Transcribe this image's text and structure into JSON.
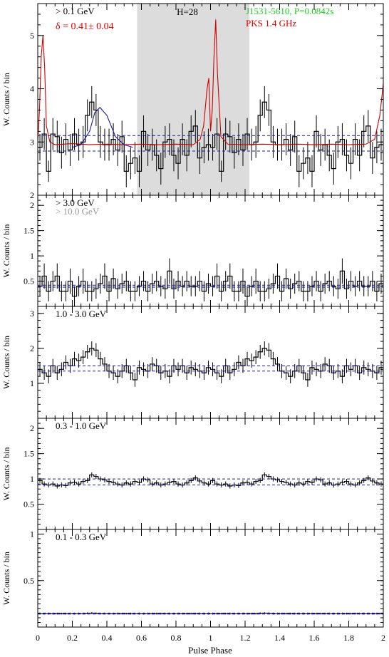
{
  "figure": {
    "xlabel": "Pulse Phase",
    "xticks": [
      "0",
      "0.2",
      "0.4",
      "0.6",
      "0.8",
      "1",
      "1.2",
      "1.4",
      "1.6",
      "1.8",
      "2"
    ]
  },
  "chart_data": [
    {
      "type": "line",
      "panel": "total",
      "ylabel": "W. Counts / bin",
      "ylim": [
        2,
        5.6
      ],
      "yticks": [
        "2",
        "3",
        "4",
        "5"
      ],
      "labels": {
        "energy": "> 0.1 GeV",
        "delta": "δ = 0.41± 0.04",
        "h_test": "H=28",
        "pulsar": "J1531-5610, P=0.0842s",
        "radio": "PKS 1.4 GHz"
      },
      "colors": {
        "energy": "#000000",
        "delta": "#e00000",
        "pulsar": "#22cc22",
        "radio": "#e00000",
        "radio_profile": "#cc0000",
        "background": "#1a1aa0",
        "fit": "#1a1aa0",
        "offpulse": "#dcdcdc"
      },
      "offpulse_phase": [
        0.575,
        1.225
      ],
      "background_lines": [
        2.83,
        3.12
      ],
      "x": [
        0.0,
        0.025,
        0.05,
        0.075,
        0.1,
        0.125,
        0.15,
        0.175,
        0.2,
        0.225,
        0.25,
        0.275,
        0.3,
        0.325,
        0.35,
        0.375,
        0.4,
        0.425,
        0.45,
        0.475,
        0.5,
        0.525,
        0.55,
        0.575,
        0.6,
        0.625,
        0.65,
        0.675,
        0.7,
        0.725,
        0.75,
        0.775,
        0.8,
        0.825,
        0.85,
        0.875,
        0.9,
        0.925,
        0.95,
        0.975
      ],
      "values": [
        2.9,
        3.15,
        2.45,
        3.15,
        3.1,
        2.8,
        3.05,
        2.85,
        3.15,
        2.95,
        3.0,
        3.5,
        3.75,
        3.6,
        3.0,
        2.95,
        2.95,
        3.05,
        2.85,
        3.1,
        2.45,
        2.6,
        2.7,
        2.45,
        3.2,
        2.85,
        2.95,
        2.75,
        2.5,
        3.0,
        3.05,
        2.75,
        2.6,
        3.05,
        2.75,
        3.2,
        3.3,
        2.7,
        2.9,
        2.95
      ],
      "errors": [
        0.25,
        0.3,
        0.2,
        0.3,
        0.3,
        0.3,
        0.3,
        0.3,
        0.3,
        0.3,
        0.3,
        0.3,
        0.3,
        0.3,
        0.3,
        0.3,
        0.3,
        0.3,
        0.3,
        0.3,
        0.3,
        0.3,
        0.3,
        0.3,
        0.3,
        0.3,
        0.3,
        0.3,
        0.3,
        0.3,
        0.3,
        0.3,
        0.3,
        0.3,
        0.3,
        0.3,
        0.3,
        0.3,
        0.3,
        0.3
      ]
    },
    {
      "type": "line",
      "panel": "above_3GeV",
      "ylabel": "W. Counts / bin",
      "ylim": [
        0,
        2.2
      ],
      "yticks": [
        "0.5",
        "1",
        "1.5",
        "2"
      ],
      "labels": {
        "energy": "> 3.0 GeV",
        "energy2": "> 10.0 GeV"
      },
      "colors": {
        "energy": "#000000",
        "energy2": "#999999",
        "background": "#1a1aa0"
      },
      "background_lines": [
        0.38,
        0.42
      ],
      "x": [
        0.0,
        0.025,
        0.05,
        0.075,
        0.1,
        0.125,
        0.15,
        0.175,
        0.2,
        0.225,
        0.25,
        0.275,
        0.3,
        0.325,
        0.35,
        0.375,
        0.4,
        0.425,
        0.45,
        0.475,
        0.5,
        0.525,
        0.55,
        0.575,
        0.6,
        0.625,
        0.65,
        0.675,
        0.7,
        0.725,
        0.75,
        0.775,
        0.8,
        0.825,
        0.85,
        0.875,
        0.9,
        0.925,
        0.95,
        0.975
      ],
      "values": [
        0.4,
        0.6,
        0.3,
        0.5,
        0.6,
        0.3,
        0.3,
        0.5,
        0.2,
        0.4,
        0.5,
        0.3,
        0.3,
        0.35,
        0.45,
        0.6,
        0.3,
        0.55,
        0.35,
        0.45,
        0.5,
        0.3,
        0.3,
        0.4,
        0.5,
        0.3,
        0.45,
        0.5,
        0.4,
        0.35,
        0.7,
        0.35,
        0.5,
        0.4,
        0.5,
        0.4,
        0.4,
        0.5,
        0.3,
        0.45
      ],
      "errors": [
        0.2,
        0.25,
        0.2,
        0.2,
        0.25,
        0.2,
        0.2,
        0.25,
        0.2,
        0.2,
        0.25,
        0.2,
        0.2,
        0.2,
        0.2,
        0.25,
        0.2,
        0.2,
        0.2,
        0.2,
        0.2,
        0.2,
        0.2,
        0.2,
        0.2,
        0.2,
        0.2,
        0.2,
        0.2,
        0.2,
        0.25,
        0.2,
        0.2,
        0.2,
        0.2,
        0.2,
        0.2,
        0.2,
        0.2,
        0.2
      ]
    },
    {
      "type": "line",
      "panel": "1_3GeV",
      "ylabel": "W. Counts / bin",
      "ylim": [
        0,
        3.2
      ],
      "yticks": [
        "1",
        "2",
        "3"
      ],
      "labels": {
        "energy": "1.0 - 3.0 GeV"
      },
      "colors": {
        "energy": "#000000",
        "background": "#1a1aa0"
      },
      "background_lines": [
        1.35,
        1.5
      ],
      "x": [
        0.0,
        0.025,
        0.05,
        0.075,
        0.1,
        0.125,
        0.15,
        0.175,
        0.2,
        0.225,
        0.25,
        0.275,
        0.3,
        0.325,
        0.35,
        0.375,
        0.4,
        0.425,
        0.45,
        0.475,
        0.5,
        0.525,
        0.55,
        0.575,
        0.6,
        0.625,
        0.65,
        0.675,
        0.7,
        0.725,
        0.75,
        0.775,
        0.8,
        0.825,
        0.85,
        0.875,
        0.9,
        0.925,
        0.95,
        0.975
      ],
      "values": [
        1.4,
        1.3,
        1.2,
        1.5,
        1.3,
        1.4,
        1.6,
        1.5,
        1.7,
        1.65,
        1.75,
        1.9,
        2.0,
        1.95,
        1.7,
        1.55,
        1.35,
        1.3,
        1.2,
        1.35,
        1.5,
        1.3,
        1.1,
        1.45,
        1.4,
        1.35,
        1.55,
        1.5,
        1.3,
        1.35,
        1.2,
        1.5,
        1.4,
        1.5,
        1.3,
        1.45,
        1.4,
        1.35,
        1.3,
        1.45
      ],
      "errors": [
        0.2,
        0.2,
        0.2,
        0.2,
        0.2,
        0.2,
        0.2,
        0.2,
        0.2,
        0.2,
        0.2,
        0.2,
        0.2,
        0.2,
        0.2,
        0.2,
        0.2,
        0.2,
        0.2,
        0.2,
        0.2,
        0.2,
        0.2,
        0.2,
        0.2,
        0.2,
        0.2,
        0.2,
        0.2,
        0.2,
        0.2,
        0.2,
        0.2,
        0.2,
        0.2,
        0.2,
        0.2,
        0.2,
        0.2,
        0.2
      ]
    },
    {
      "type": "line",
      "panel": "0.3_1GeV",
      "ylabel": "W. Counts / bin",
      "ylim": [
        0,
        2.2
      ],
      "yticks": [
        "0.5",
        "1",
        "1.5",
        "2"
      ],
      "labels": {
        "energy": "0.3 - 1.0 GeV"
      },
      "colors": {
        "energy": "#000000",
        "background": "#1a1aa0"
      },
      "background_lines": [
        0.88,
        1.0
      ],
      "x": [
        0.0,
        0.025,
        0.05,
        0.075,
        0.1,
        0.125,
        0.15,
        0.175,
        0.2,
        0.225,
        0.25,
        0.275,
        0.3,
        0.325,
        0.35,
        0.375,
        0.4,
        0.425,
        0.45,
        0.475,
        0.5,
        0.525,
        0.55,
        0.575,
        0.6,
        0.625,
        0.65,
        0.675,
        0.7,
        0.725,
        0.75,
        0.775,
        0.8,
        0.825,
        0.85,
        0.875,
        0.9,
        0.925,
        0.95,
        0.975
      ],
      "values": [
        0.97,
        0.9,
        0.88,
        0.9,
        0.86,
        0.88,
        0.87,
        0.92,
        0.93,
        0.9,
        0.95,
        0.97,
        1.08,
        1.05,
        1.0,
        0.98,
        0.95,
        0.93,
        0.9,
        0.88,
        0.92,
        0.9,
        0.95,
        0.93,
        1.0,
        0.98,
        0.9,
        0.92,
        0.88,
        0.9,
        0.93,
        0.95,
        0.9,
        0.88,
        0.92,
        0.97,
        1.02,
        0.96,
        0.92,
        0.9
      ],
      "errors": [
        0.05,
        0.05,
        0.05,
        0.05,
        0.05,
        0.05,
        0.05,
        0.05,
        0.05,
        0.05,
        0.05,
        0.05,
        0.05,
        0.05,
        0.05,
        0.05,
        0.05,
        0.05,
        0.05,
        0.05,
        0.05,
        0.05,
        0.05,
        0.05,
        0.05,
        0.05,
        0.05,
        0.05,
        0.05,
        0.05,
        0.05,
        0.05,
        0.05,
        0.05,
        0.05,
        0.05,
        0.05,
        0.05,
        0.05,
        0.05
      ]
    },
    {
      "type": "line",
      "panel": "0.1_0.3GeV",
      "ylabel": "W. Counts / bin",
      "ylim": [
        0,
        1.05
      ],
      "yticks": [
        "0.5",
        "1"
      ],
      "labels": {
        "energy": "0.1 - 0.3 GeV"
      },
      "colors": {
        "energy": "#000000",
        "background": "#1a1aa0"
      },
      "background_lines": [
        0.14,
        0.15
      ],
      "x": [
        0.0,
        0.025,
        0.05,
        0.075,
        0.1,
        0.125,
        0.15,
        0.175,
        0.2,
        0.225,
        0.25,
        0.275,
        0.3,
        0.325,
        0.35,
        0.375,
        0.4,
        0.425,
        0.45,
        0.475,
        0.5,
        0.525,
        0.55,
        0.575,
        0.6,
        0.625,
        0.65,
        0.675,
        0.7,
        0.725,
        0.75,
        0.775,
        0.8,
        0.825,
        0.85,
        0.875,
        0.9,
        0.925,
        0.95,
        0.975
      ],
      "values": [
        0.145,
        0.145,
        0.145,
        0.145,
        0.145,
        0.145,
        0.145,
        0.145,
        0.145,
        0.145,
        0.145,
        0.148,
        0.15,
        0.148,
        0.145,
        0.145,
        0.145,
        0.145,
        0.145,
        0.145,
        0.145,
        0.145,
        0.145,
        0.145,
        0.145,
        0.145,
        0.145,
        0.145,
        0.145,
        0.145,
        0.145,
        0.145,
        0.145,
        0.145,
        0.145,
        0.145,
        0.145,
        0.145,
        0.145,
        0.145
      ],
      "errors": [
        0.01,
        0.01,
        0.01,
        0.01,
        0.01,
        0.01,
        0.01,
        0.01,
        0.01,
        0.01,
        0.01,
        0.01,
        0.01,
        0.01,
        0.01,
        0.01,
        0.01,
        0.01,
        0.01,
        0.01,
        0.01,
        0.01,
        0.01,
        0.01,
        0.01,
        0.01,
        0.01,
        0.01,
        0.01,
        0.01,
        0.01,
        0.01,
        0.01,
        0.01,
        0.01,
        0.01,
        0.01,
        0.01,
        0.01,
        0.01
      ]
    }
  ],
  "overlays": {
    "radio_profile": {
      "description_units": "phase, W. Counts / bin",
      "points": [
        [
          0.0,
          3.0
        ],
        [
          0.01,
          3.6
        ],
        [
          0.02,
          4.6
        ],
        [
          0.03,
          5.0
        ],
        [
          0.04,
          4.4
        ],
        [
          0.05,
          3.3
        ],
        [
          0.07,
          3.0
        ],
        [
          0.1,
          2.95
        ],
        [
          0.2,
          2.97
        ],
        [
          0.3,
          2.95
        ],
        [
          0.4,
          2.96
        ],
        [
          0.5,
          2.95
        ],
        [
          0.6,
          2.96
        ],
        [
          0.7,
          2.95
        ],
        [
          0.8,
          2.96
        ],
        [
          0.9,
          2.95
        ],
        [
          0.94,
          3.05
        ],
        [
          0.96,
          3.3
        ],
        [
          0.98,
          4.0
        ],
        [
          0.99,
          4.2
        ],
        [
          1.0,
          3.2
        ],
        [
          1.01,
          3.6
        ],
        [
          1.02,
          4.6
        ],
        [
          1.03,
          5.3
        ],
        [
          1.04,
          4.3
        ],
        [
          1.06,
          3.1
        ],
        [
          1.1,
          2.96
        ],
        [
          1.2,
          2.95
        ],
        [
          1.3,
          2.96
        ],
        [
          1.4,
          2.95
        ],
        [
          1.5,
          2.96
        ],
        [
          1.6,
          2.95
        ],
        [
          1.7,
          2.96
        ],
        [
          1.8,
          2.95
        ],
        [
          1.9,
          2.96
        ],
        [
          1.95,
          3.05
        ],
        [
          1.98,
          3.5
        ],
        [
          2.0,
          4.1
        ]
      ]
    },
    "fit_curve": {
      "points": [
        [
          0.2,
          2.9
        ],
        [
          0.25,
          2.95
        ],
        [
          0.3,
          3.2
        ],
        [
          0.33,
          3.55
        ],
        [
          0.36,
          3.65
        ],
        [
          0.4,
          3.5
        ],
        [
          0.45,
          3.1
        ],
        [
          0.5,
          2.95
        ],
        [
          0.55,
          2.9
        ]
      ]
    }
  }
}
